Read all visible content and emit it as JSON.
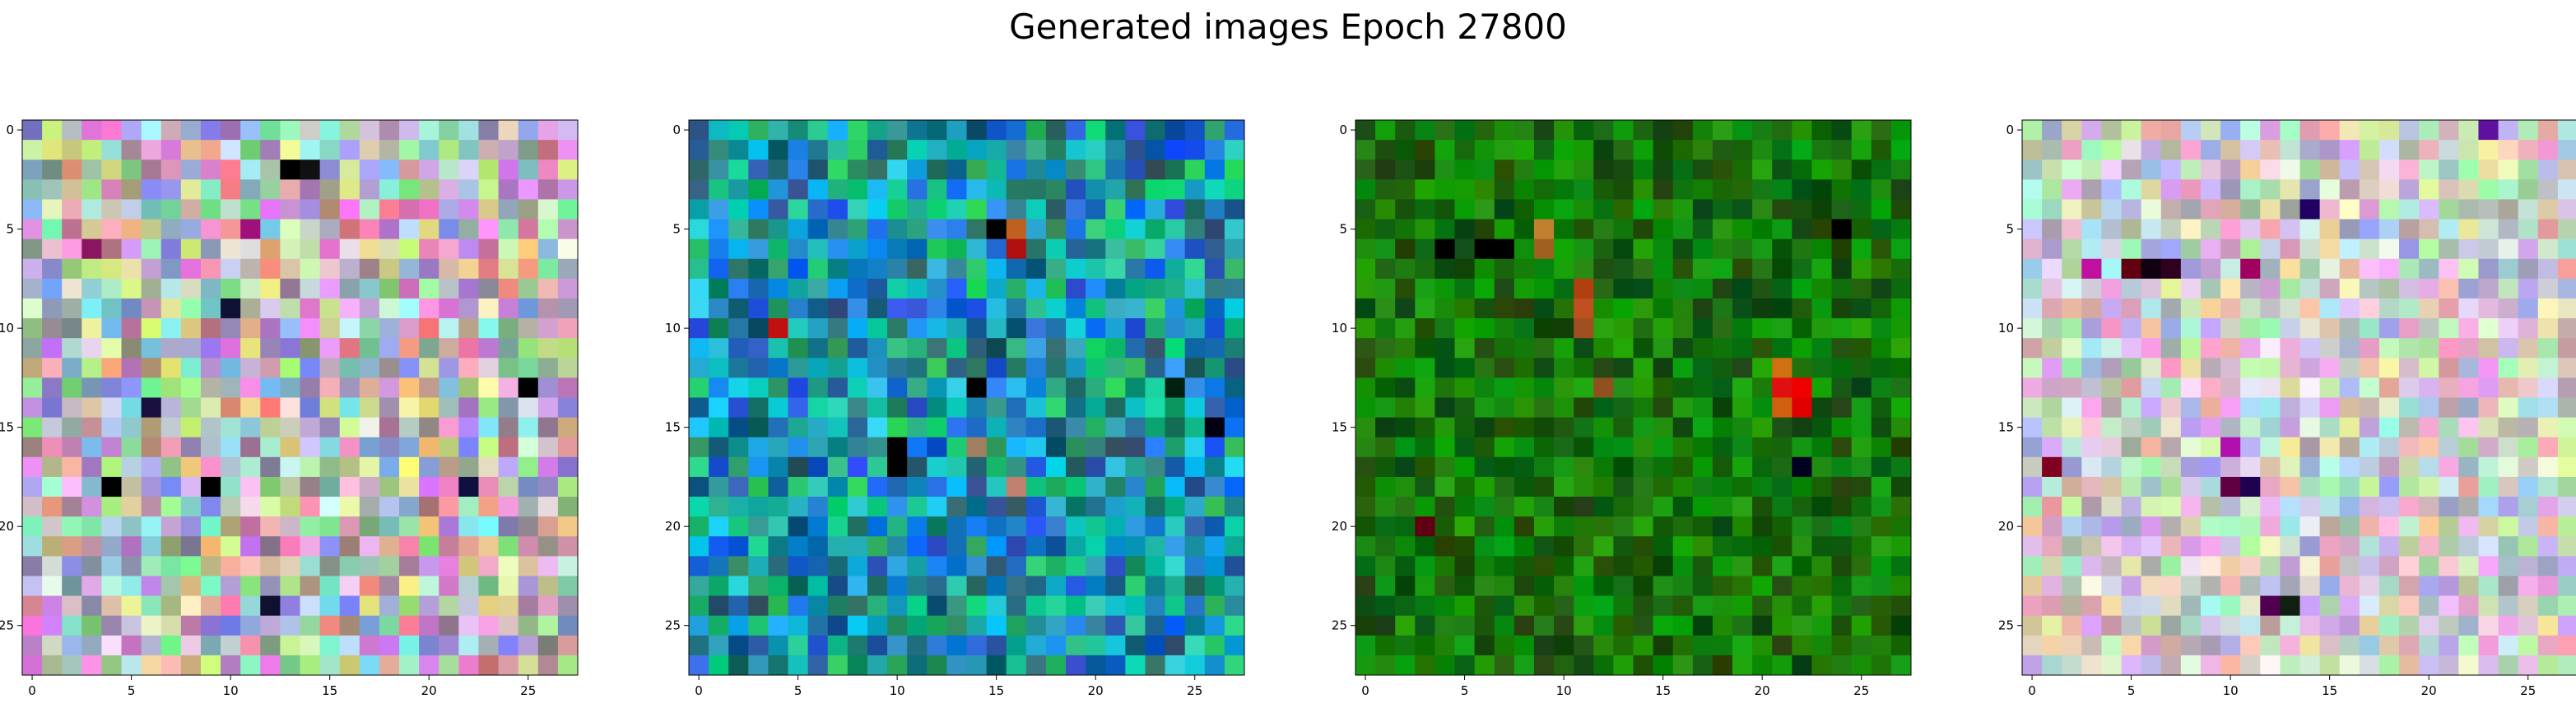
{
  "figure": {
    "title": "Generated images Epoch 27800"
  },
  "chart_data": [
    {
      "type": "heatmap",
      "grid": false,
      "x": {
        "range": [
          -0.5,
          27.5
        ],
        "ticks": [
          0,
          5,
          10,
          15,
          20,
          25
        ]
      },
      "y": {
        "range": [
          -0.5,
          27.5
        ],
        "ticks": [
          0,
          5,
          10,
          15,
          20,
          25
        ],
        "inverted": true
      },
      "palette": "pastel-noise",
      "features": [
        {
          "row": 2,
          "col": 13,
          "color": "#000000"
        },
        {
          "row": 2,
          "col": 14,
          "color": "#111111"
        },
        {
          "row": 5,
          "col": 11,
          "color": "#a0107a"
        },
        {
          "row": 6,
          "col": 3,
          "color": "#8a1560"
        },
        {
          "row": 9,
          "col": 10,
          "color": "#111133"
        },
        {
          "row": 14,
          "col": 6,
          "color": "#1a1040"
        },
        {
          "row": 18,
          "col": 4,
          "color": "#000000"
        },
        {
          "row": 18,
          "col": 9,
          "color": "#000000"
        },
        {
          "row": 18,
          "col": 22,
          "color": "#101040"
        },
        {
          "row": 24,
          "col": 12,
          "color": "#101030"
        },
        {
          "row": 13,
          "col": 25,
          "color": "#000000"
        }
      ]
    },
    {
      "type": "heatmap",
      "grid": false,
      "x": {
        "range": [
          -0.5,
          27.5
        ],
        "ticks": [
          0,
          5,
          10,
          15,
          20,
          25
        ]
      },
      "y": {
        "range": [
          -0.5,
          27.5
        ],
        "ticks": [
          0,
          5,
          10,
          15,
          20,
          25
        ],
        "inverted": true
      },
      "palette": "teal-blue",
      "features": [
        {
          "row": 10,
          "col": 4,
          "color": "#c01010"
        },
        {
          "row": 5,
          "col": 16,
          "color": "#c06020"
        },
        {
          "row": 6,
          "col": 16,
          "color": "#b01010"
        },
        {
          "row": 5,
          "col": 15,
          "color": "#000000"
        },
        {
          "row": 13,
          "col": 14,
          "color": "#000000"
        },
        {
          "row": 16,
          "col": 10,
          "color": "#000000"
        },
        {
          "row": 17,
          "col": 10,
          "color": "#000000"
        },
        {
          "row": 16,
          "col": 14,
          "color": "#a08060"
        },
        {
          "row": 18,
          "col": 16,
          "color": "#c08070"
        },
        {
          "row": 13,
          "col": 24,
          "color": "#002010"
        },
        {
          "row": 15,
          "col": 26,
          "color": "#000010"
        }
      ]
    },
    {
      "type": "heatmap",
      "grid": false,
      "x": {
        "range": [
          -0.5,
          27.5
        ],
        "ticks": [
          0,
          5,
          10,
          15,
          20,
          25
        ]
      },
      "y": {
        "range": [
          -0.5,
          27.5
        ],
        "ticks": [
          0,
          5,
          10,
          15,
          20,
          25
        ],
        "inverted": true
      },
      "palette": "green",
      "features": [
        {
          "row": 5,
          "col": 9,
          "color": "#c08030"
        },
        {
          "row": 6,
          "col": 9,
          "color": "#a06020"
        },
        {
          "row": 8,
          "col": 11,
          "color": "#b04010"
        },
        {
          "row": 9,
          "col": 11,
          "color": "#c05020"
        },
        {
          "row": 10,
          "col": 11,
          "color": "#a05020"
        },
        {
          "row": 12,
          "col": 21,
          "color": "#d07010"
        },
        {
          "row": 13,
          "col": 21,
          "color": "#e01010"
        },
        {
          "row": 13,
          "col": 22,
          "color": "#f00000"
        },
        {
          "row": 14,
          "col": 21,
          "color": "#d06010"
        },
        {
          "row": 14,
          "col": 22,
          "color": "#e00000"
        },
        {
          "row": 13,
          "col": 12,
          "color": "#905020"
        },
        {
          "row": 20,
          "col": 3,
          "color": "#600010"
        },
        {
          "row": 6,
          "col": 4,
          "color": "#000000"
        },
        {
          "row": 6,
          "col": 6,
          "color": "#000000"
        },
        {
          "row": 6,
          "col": 7,
          "color": "#000000"
        },
        {
          "row": 5,
          "col": 24,
          "color": "#000000"
        },
        {
          "row": 17,
          "col": 22,
          "color": "#000020"
        }
      ]
    },
    {
      "type": "heatmap",
      "grid": false,
      "x": {
        "range": [
          -0.5,
          27.5
        ],
        "ticks": [
          0,
          5,
          10,
          15,
          20,
          25
        ]
      },
      "y": {
        "range": [
          -0.5,
          27.5
        ],
        "ticks": [
          0,
          5,
          10,
          15,
          20,
          25
        ],
        "inverted": true
      },
      "palette": "pastel-light",
      "features": [
        {
          "row": 7,
          "col": 3,
          "color": "#c010a0"
        },
        {
          "row": 7,
          "col": 5,
          "color": "#600010"
        },
        {
          "row": 7,
          "col": 6,
          "color": "#100010"
        },
        {
          "row": 7,
          "col": 7,
          "color": "#300020"
        },
        {
          "row": 7,
          "col": 11,
          "color": "#a00060"
        },
        {
          "row": 4,
          "col": 14,
          "color": "#200060"
        },
        {
          "row": 16,
          "col": 10,
          "color": "#b010b0"
        },
        {
          "row": 18,
          "col": 10,
          "color": "#600040"
        },
        {
          "row": 18,
          "col": 11,
          "color": "#200050"
        },
        {
          "row": 24,
          "col": 13,
          "color": "#102010"
        },
        {
          "row": 24,
          "col": 12,
          "color": "#500050"
        },
        {
          "row": 17,
          "col": 1,
          "color": "#800020"
        },
        {
          "row": 0,
          "col": 23,
          "color": "#6010a0"
        }
      ]
    }
  ]
}
